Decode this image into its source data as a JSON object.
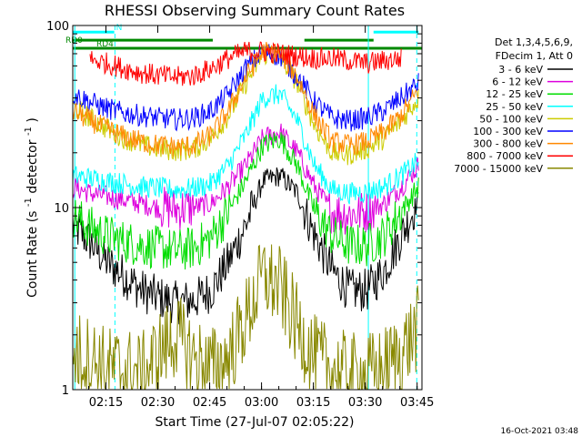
{
  "chart_data": {
    "type": "line",
    "title": "RHESSI Observing Summary Count Rates",
    "xlabel": "Start Time (27-Jul-07 02:05:22)",
    "ylabel": "Count Rate (s",
    "ylabel_sup": "-1",
    "ylabel_tail": " detector",
    "ylabel_sup2": "-1",
    "ylabel_close": ")",
    "xlim": [
      0,
      101
    ],
    "ylim": [
      1,
      100
    ],
    "yscale": "log",
    "x_unit": "minutes after 02:05:22",
    "x_ticks": [
      {
        "label": "02:15",
        "value": 9.6
      },
      {
        "label": "02:30",
        "value": 24.6
      },
      {
        "label": "02:45",
        "value": 39.6
      },
      {
        "label": "03:00",
        "value": 54.6
      },
      {
        "label": "03:15",
        "value": 69.6
      },
      {
        "label": "03:30",
        "value": 84.6
      },
      {
        "label": "03:45",
        "value": 99.6
      }
    ],
    "y_ticks": [
      {
        "label": "1",
        "value": 1
      },
      {
        "label": "10",
        "value": 10
      },
      {
        "label": "100",
        "value": 100
      }
    ],
    "legend": {
      "position": "top-right",
      "header": [
        "Det 1,3,4,5,6,9,",
        "FDecim 1, Att 0"
      ]
    },
    "series": [
      {
        "name": "3 - 6 keV",
        "color": "#000000",
        "x": [
          0,
          5,
          10,
          15,
          20,
          25,
          30,
          35,
          40,
          45,
          50,
          55,
          60,
          65,
          70,
          75,
          80,
          85,
          90,
          95,
          100
        ],
        "y": [
          8,
          6.5,
          5,
          4.2,
          3.5,
          3.2,
          3.0,
          3.1,
          3.5,
          5,
          8,
          14,
          15,
          12,
          7,
          4.5,
          3.5,
          3.5,
          4.5,
          7,
          11
        ]
      },
      {
        "name": "6 - 12 keV",
        "color": "#dd00dd",
        "x": [
          0,
          5,
          10,
          15,
          20,
          25,
          30,
          35,
          40,
          45,
          50,
          55,
          60,
          65,
          70,
          75,
          80,
          85,
          90,
          95,
          100
        ],
        "y": [
          13,
          12,
          11.5,
          11,
          10.5,
          10,
          9.8,
          10,
          10.5,
          13,
          17,
          24,
          26,
          20,
          13,
          9.5,
          9.2,
          9.5,
          10.5,
          13,
          17
        ]
      },
      {
        "name": "12 - 25 keV",
        "color": "#00dd00",
        "x": [
          0,
          5,
          10,
          15,
          20,
          25,
          30,
          35,
          40,
          45,
          50,
          55,
          60,
          65,
          70,
          75,
          80,
          85,
          90,
          95,
          100
        ],
        "y": [
          9,
          7.8,
          7,
          6.5,
          6.2,
          6,
          5.8,
          6,
          6.8,
          9.5,
          14,
          22,
          24,
          17,
          9.5,
          7,
          6.2,
          6.2,
          7,
          9.5,
          13
        ]
      },
      {
        "name": "25 - 50 keV",
        "color": "#00ffff",
        "x": [
          0,
          5,
          10,
          15,
          20,
          25,
          30,
          35,
          40,
          45,
          50,
          55,
          60,
          65,
          70,
          75,
          80,
          85,
          90,
          95,
          100
        ],
        "y": [
          15,
          14.5,
          14,
          13.5,
          13,
          12.8,
          12.5,
          12.8,
          13.5,
          17,
          25,
          40,
          42,
          30,
          17,
          12.5,
          12,
          12.2,
          13,
          15,
          18
        ]
      },
      {
        "name": "50 - 100 keV",
        "color": "#cccc00",
        "x": [
          0,
          5,
          10,
          15,
          20,
          25,
          30,
          35,
          40,
          45,
          50,
          55,
          60,
          65,
          70,
          75,
          80,
          85,
          90,
          95,
          100
        ],
        "y": [
          36,
          31,
          27,
          24,
          22,
          21,
          20.5,
          21,
          24,
          32,
          48,
          70,
          68,
          48,
          28,
          20,
          19.5,
          21,
          24,
          30,
          40
        ]
      },
      {
        "name": "100 - 300 keV",
        "color": "#0000ff",
        "x": [
          0,
          5,
          10,
          15,
          20,
          25,
          30,
          35,
          40,
          45,
          50,
          55,
          60,
          65,
          70,
          75,
          80,
          85,
          90,
          95,
          100
        ],
        "y": [
          42,
          38,
          35,
          33,
          32,
          31,
          30.5,
          31,
          34,
          42,
          58,
          72,
          68,
          52,
          38,
          31,
          30,
          31,
          34,
          40,
          48
        ]
      },
      {
        "name": "300 - 800 keV",
        "color": "#ff8800",
        "x": [
          0,
          5,
          10,
          15,
          20,
          25,
          30,
          35,
          40,
          45,
          50,
          55,
          60,
          65,
          70,
          75,
          80,
          85,
          90,
          95,
          100
        ],
        "y": [
          34,
          30,
          27,
          24.5,
          23,
          22,
          21.5,
          22,
          25,
          34,
          52,
          72,
          70,
          52,
          32,
          23,
          22,
          23,
          26,
          32,
          44
        ]
      },
      {
        "name": "800 - 7000 keV",
        "color": "#ff0000",
        "x": [
          5,
          10,
          15,
          20,
          25,
          30,
          35,
          40,
          45,
          50,
          55,
          60,
          65,
          70,
          75,
          80,
          85,
          90,
          95
        ],
        "y": [
          65,
          62,
          58,
          55,
          53,
          52,
          53,
          58,
          66,
          72,
          72,
          70,
          68,
          66,
          66,
          64,
          62,
          64,
          66
        ]
      },
      {
        "name": "7000 - 15000 keV",
        "color": "#888800",
        "x": [
          0,
          5,
          10,
          15,
          20,
          25,
          30,
          35,
          40,
          45,
          50,
          55,
          60,
          65,
          70,
          75,
          80,
          85,
          90,
          95,
          100
        ],
        "y": [
          1.6,
          1.5,
          1.3,
          1.3,
          1.2,
          1.6,
          2.0,
          1.5,
          1.3,
          1.5,
          2.4,
          4.2,
          3.6,
          2.2,
          1.5,
          1.3,
          1.2,
          1.2,
          1.3,
          1.6,
          2.2
        ]
      }
    ],
    "annotations": [
      {
        "label": "N",
        "color": "#00ffff",
        "bars": [
          [
            0,
            12
          ],
          [
            87,
            100
          ]
        ],
        "level": 92
      },
      {
        "label": "RD0",
        "color": "#008800",
        "bars": [
          [
            0,
            40.5
          ],
          [
            67,
            87
          ]
        ],
        "level": 83
      },
      {
        "label": "RD4",
        "color": "#008800",
        "bars": [
          [
            0,
            101
          ]
        ],
        "level": 75
      }
    ],
    "vlines": [
      {
        "x": 0.6,
        "color": "#00ffff",
        "style": "solid"
      },
      {
        "x": 12.2,
        "color": "#00ffff",
        "style": "dashed"
      },
      {
        "x": 85.5,
        "color": "#00ffff",
        "style": "solid"
      },
      {
        "x": 99.5,
        "color": "#00ffff",
        "style": "dashed"
      }
    ],
    "footer_date": "16-Oct-2021 03:48"
  }
}
